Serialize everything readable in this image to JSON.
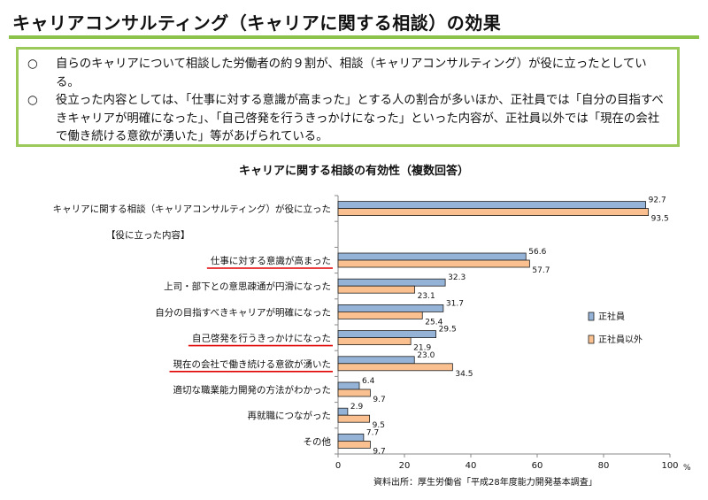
{
  "header": {
    "title": "キャリアコンサルティング（キャリアに関する相談）の効果"
  },
  "summary": {
    "items": [
      {
        "bullet": "○",
        "text": "自らのキャリアについて相談した労働者の約９割が、相談（キャリアコンサルティング）が役に立ったとしている。"
      },
      {
        "bullet": "○",
        "text": "役立った内容としては、「仕事に対する意識が高まった」とする人の割合が多いほか、正社員では「自分の目指すべきキャリアが明確になった」、「自己啓発を行うきっかけになった」といった内容が、正社員以外では「現在の会社で働き続ける意欲が湧いた」等があげられている。"
      }
    ]
  },
  "chart_data": {
    "type": "bar",
    "orientation": "horizontal",
    "title": "キャリアに関する相談の有効性（複数回答）",
    "categories": [
      "キャリアに関する相談（キャリアコンサルティング）が役に立った",
      "【役に立った内容】",
      "仕事に対する意識が高まった",
      "上司・部下との意思疎通が円滑になった",
      "自分の目指すべきキャリアが明確になった",
      "自己啓発を行うきっかけになった",
      "現在の会社で働き続ける意欲が湧いた",
      "適切な職業能力開発の方法がわかった",
      "再就職につながった",
      "その他"
    ],
    "underlined": [
      false,
      false,
      true,
      false,
      false,
      true,
      true,
      false,
      false,
      false
    ],
    "series": [
      {
        "name": "正社員",
        "color": "#95b3d7",
        "values": [
          92.7,
          null,
          56.6,
          32.3,
          31.7,
          29.5,
          23.0,
          6.4,
          2.9,
          7.7
        ]
      },
      {
        "name": "正社員以外",
        "color": "#fac090",
        "values": [
          93.5,
          null,
          57.7,
          23.1,
          25.4,
          21.9,
          34.5,
          9.7,
          9.5,
          9.7
        ]
      }
    ],
    "xlim": [
      0,
      100
    ],
    "xticks": [
      0,
      20,
      40,
      60,
      80,
      100
    ],
    "xunit": "%",
    "legend_position": "right",
    "grid": false
  },
  "source": "資料出所：厚生労働省「平成28年度能力開発基本調査」"
}
